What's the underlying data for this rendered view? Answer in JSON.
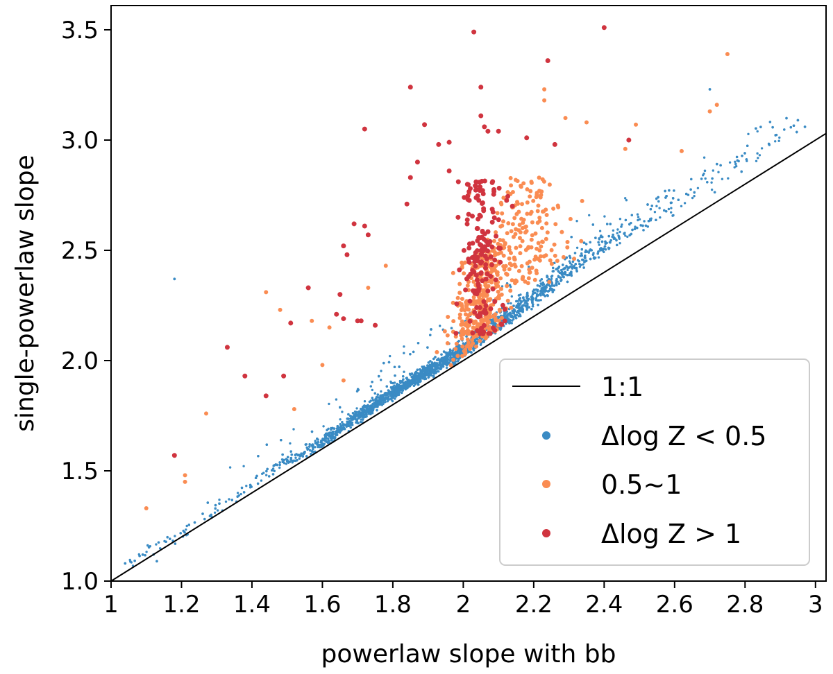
{
  "chart_data": {
    "type": "scatter",
    "title": "",
    "xlabel": "powerlaw slope with bb",
    "ylabel": "single-powerlaw slope",
    "xlim": [
      1.0,
      3.03
    ],
    "ylim": [
      1.0,
      3.61
    ],
    "x_ticks": [
      1.0,
      1.2,
      1.4,
      1.6,
      1.8,
      2.0,
      2.2,
      2.4,
      2.6,
      2.8,
      3.0
    ],
    "x_tick_labels": [
      "1",
      "1.2",
      "1.4",
      "1.6",
      "1.8",
      "2",
      "2.2",
      "2.4",
      "2.6",
      "2.8",
      "3"
    ],
    "y_ticks": [
      1.0,
      1.5,
      2.0,
      2.5,
      3.0,
      3.5
    ],
    "y_tick_labels": [
      "1.0",
      "1.5",
      "2.0",
      "2.5",
      "3.0",
      "3.5"
    ],
    "grid": false,
    "legend_position": "lower-right",
    "reference_line": {
      "name": "1:1",
      "x": [
        1.0,
        3.03
      ],
      "y": [
        1.0,
        3.03
      ],
      "color": "#000000"
    },
    "series": [
      {
        "name": "Δlog Z < 0.5",
        "color": "#3a8bc4",
        "marker_size": "small",
        "trend": [
          [
            1.05,
            1.07
          ],
          [
            1.2,
            1.2
          ],
          [
            1.4,
            1.43
          ],
          [
            1.6,
            1.62
          ],
          [
            1.8,
            1.84
          ],
          [
            2.0,
            2.03
          ],
          [
            2.2,
            2.26
          ],
          [
            2.4,
            2.5
          ],
          [
            2.6,
            2.68
          ],
          [
            2.8,
            2.86
          ],
          [
            2.96,
            3.05
          ]
        ],
        "points": [
          [
            1.18,
            2.37
          ],
          [
            2.7,
            3.23
          ],
          [
            2.95,
            3.09
          ],
          [
            2.97,
            3.06
          ],
          [
            1.09,
            1.12
          ],
          [
            1.13,
            1.09
          ],
          [
            1.04,
            1.08
          ]
        ]
      },
      {
        "name": "0.5~1",
        "color": "#fa8c52",
        "marker_size": "medium",
        "points": [
          [
            1.1,
            1.33
          ],
          [
            1.21,
            1.45
          ],
          [
            1.21,
            1.48
          ],
          [
            1.27,
            1.76
          ],
          [
            2.75,
            3.39
          ],
          [
            2.72,
            3.16
          ],
          [
            2.7,
            3.13
          ],
          [
            2.49,
            3.07
          ],
          [
            2.35,
            3.08
          ],
          [
            2.29,
            3.1
          ],
          [
            2.23,
            3.18
          ],
          [
            2.23,
            3.23
          ],
          [
            1.57,
            2.18
          ],
          [
            1.48,
            2.23
          ],
          [
            1.62,
            2.15
          ],
          [
            1.64,
            2.21
          ],
          [
            1.52,
            1.78
          ],
          [
            1.6,
            1.98
          ],
          [
            1.66,
            1.91
          ],
          [
            1.73,
            2.33
          ],
          [
            1.78,
            2.43
          ],
          [
            1.44,
            2.31
          ],
          [
            2.62,
            2.95
          ],
          [
            2.46,
            2.96
          ]
        ]
      },
      {
        "name": "Δlog Z > 1",
        "color": "#d0343f",
        "marker_size": "large",
        "points": [
          [
            1.18,
            1.57
          ],
          [
            1.33,
            2.06
          ],
          [
            1.38,
            1.93
          ],
          [
            1.44,
            1.84
          ],
          [
            1.49,
            1.93
          ],
          [
            1.51,
            2.17
          ],
          [
            1.56,
            2.33
          ],
          [
            1.65,
            2.3
          ],
          [
            1.66,
            2.52
          ],
          [
            1.67,
            2.48
          ],
          [
            1.69,
            2.62
          ],
          [
            1.72,
            3.05
          ],
          [
            1.72,
            2.61
          ],
          [
            1.73,
            2.57
          ],
          [
            1.7,
            2.18
          ],
          [
            1.71,
            2.18
          ],
          [
            1.75,
            2.16
          ],
          [
            1.66,
            2.19
          ],
          [
            1.64,
            2.21
          ],
          [
            1.85,
            3.24
          ],
          [
            1.87,
            2.9
          ],
          [
            1.89,
            3.07
          ],
          [
            1.93,
            2.98
          ],
          [
            1.85,
            2.83
          ],
          [
            1.84,
            2.71
          ],
          [
            1.96,
            2.86
          ],
          [
            2.03,
            3.49
          ],
          [
            2.05,
            3.24
          ],
          [
            2.24,
            3.36
          ],
          [
            2.4,
            3.51
          ],
          [
            2.18,
            3.01
          ],
          [
            2.26,
            2.98
          ],
          [
            2.47,
            3.0
          ],
          [
            2.05,
            3.11
          ],
          [
            2.06,
            3.06
          ],
          [
            2.07,
            3.04
          ],
          [
            2.1,
            3.04
          ],
          [
            1.96,
            2.99
          ]
        ]
      }
    ]
  },
  "legend": {
    "items": [
      {
        "label": "1:1",
        "kind": "line",
        "color": "#000000"
      },
      {
        "label": "Δlog Z < 0.5",
        "kind": "marker",
        "color": "#3a8bc4"
      },
      {
        "label": "0.5~1",
        "kind": "marker",
        "color": "#fa8c52"
      },
      {
        "label": "Δlog Z > 1",
        "kind": "marker",
        "color": "#d0343f"
      }
    ]
  }
}
